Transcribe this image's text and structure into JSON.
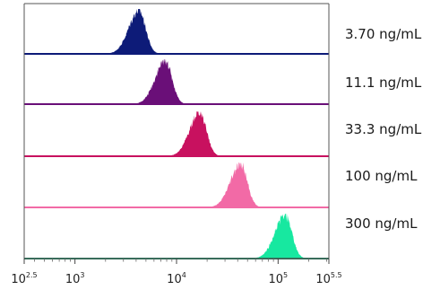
{
  "chart_data": {
    "type": "area",
    "title": "",
    "xlabel": "",
    "ylabel": "",
    "x_scale": "log10",
    "xlim_exponent": [
      2.5,
      5.5
    ],
    "x_ticks": [
      {
        "exponent": 2.5,
        "base": "10",
        "sup": "2.5"
      },
      {
        "exponent": 3,
        "base": "10",
        "sup": "3"
      },
      {
        "exponent": 4,
        "base": "10",
        "sup": "4"
      },
      {
        "exponent": 5,
        "base": "10",
        "sup": "5"
      },
      {
        "exponent": 5.5,
        "base": "10",
        "sup": "5.5"
      }
    ],
    "layout": "stacked-offset histograms",
    "series": [
      {
        "name": "3.70 ng/mL",
        "color": "#0d1b78",
        "peak_exponent": 3.63
      },
      {
        "name": "11.1 ng/mL",
        "color": "#6a0f78",
        "peak_exponent": 3.89
      },
      {
        "name": "33.3 ng/mL",
        "color": "#c8115f",
        "peak_exponent": 4.23
      },
      {
        "name": "100 ng/mL",
        "color": "#f26aa6",
        "peak_exponent": 4.63
      },
      {
        "name": "300 ng/mL",
        "color": "#17e8a0",
        "peak_exponent": 5.07
      }
    ]
  }
}
